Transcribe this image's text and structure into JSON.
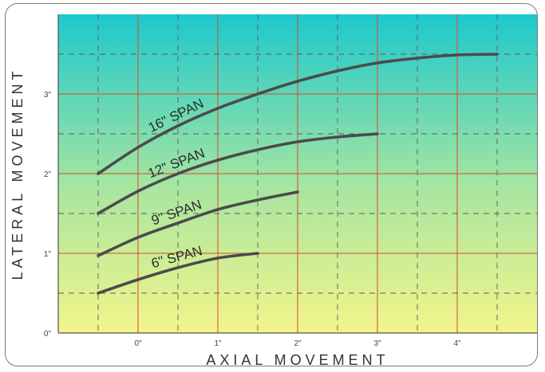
{
  "chart_data": {
    "type": "line",
    "title": "",
    "xlabel": "AXIAL MOVEMENT",
    "ylabel": "LATERAL MOVEMENT",
    "xlim": [
      -1,
      5
    ],
    "ylim": [
      0,
      4
    ],
    "x_ticks": [
      0,
      1,
      2,
      3,
      4
    ],
    "x_tick_labels": [
      "0\"",
      "1\"",
      "2\"",
      "3\"",
      "4\""
    ],
    "y_ticks": [
      0,
      1,
      2,
      3
    ],
    "y_tick_labels": [
      "0\"",
      "1\"",
      "2\"",
      "3\""
    ],
    "grid": true,
    "legend": "none",
    "series": [
      {
        "name": "6\" SPAN",
        "x": [
          -0.5,
          0,
          0.5,
          1,
          1.5
        ],
        "y": [
          0.5,
          0.67,
          0.82,
          0.94,
          1.0
        ]
      },
      {
        "name": "9\" SPAN",
        "x": [
          -0.5,
          0,
          0.5,
          1,
          1.5,
          2
        ],
        "y": [
          0.97,
          1.2,
          1.38,
          1.55,
          1.67,
          1.77
        ]
      },
      {
        "name": "12\" SPAN",
        "x": [
          -0.5,
          0,
          0.5,
          1,
          1.5,
          2,
          2.5,
          3
        ],
        "y": [
          1.5,
          1.78,
          2.0,
          2.17,
          2.3,
          2.4,
          2.46,
          2.5
        ]
      },
      {
        "name": "16\" SPAN",
        "x": [
          -0.5,
          0,
          0.5,
          1,
          1.5,
          2,
          2.5,
          3,
          3.5,
          4,
          4.5
        ],
        "y": [
          2.0,
          2.33,
          2.6,
          2.82,
          3.0,
          3.16,
          3.29,
          3.39,
          3.45,
          3.49,
          3.5
        ]
      }
    ],
    "colors": {
      "background_top": "#1ec8cc",
      "background_bottom": "#f3f58a",
      "gridline_major": "#d84a2a",
      "gridline_minor": "#5c5c5c",
      "curve": "#4b4b4b"
    }
  }
}
